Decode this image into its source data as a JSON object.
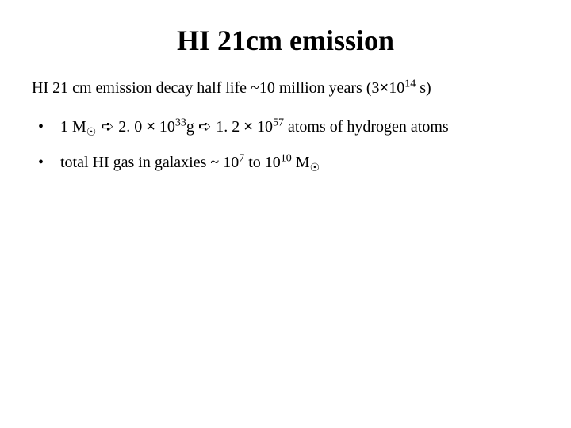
{
  "title": "HI 21cm emission",
  "intro": {
    "prefix": "HI 21 cm emission decay half life ~10 million years (3",
    "times": "×",
    "exp_base": "10",
    "exp_sup": "14",
    "suffix": " s)"
  },
  "b1": {
    "dot": "•",
    "a1": "1 M",
    "sun": "☉",
    "arrow1": " ➪ ",
    "a2": "2. 0 ",
    "times1": "×",
    "a3": " 10",
    "exp1": "33",
    "a4": "g ",
    "arrow2": "➪ ",
    "a5": "1. 2 ",
    "times2": "×",
    "a6": " 10",
    "exp2": "57",
    "a7": " atoms of hydrogen atoms"
  },
  "b2": {
    "dot": "•",
    "a1": "total HI gas in galaxies ~ 10",
    "exp1": "7",
    "a2": " to 10",
    "exp2": "10",
    "a3": " M",
    "sun": "☉"
  }
}
